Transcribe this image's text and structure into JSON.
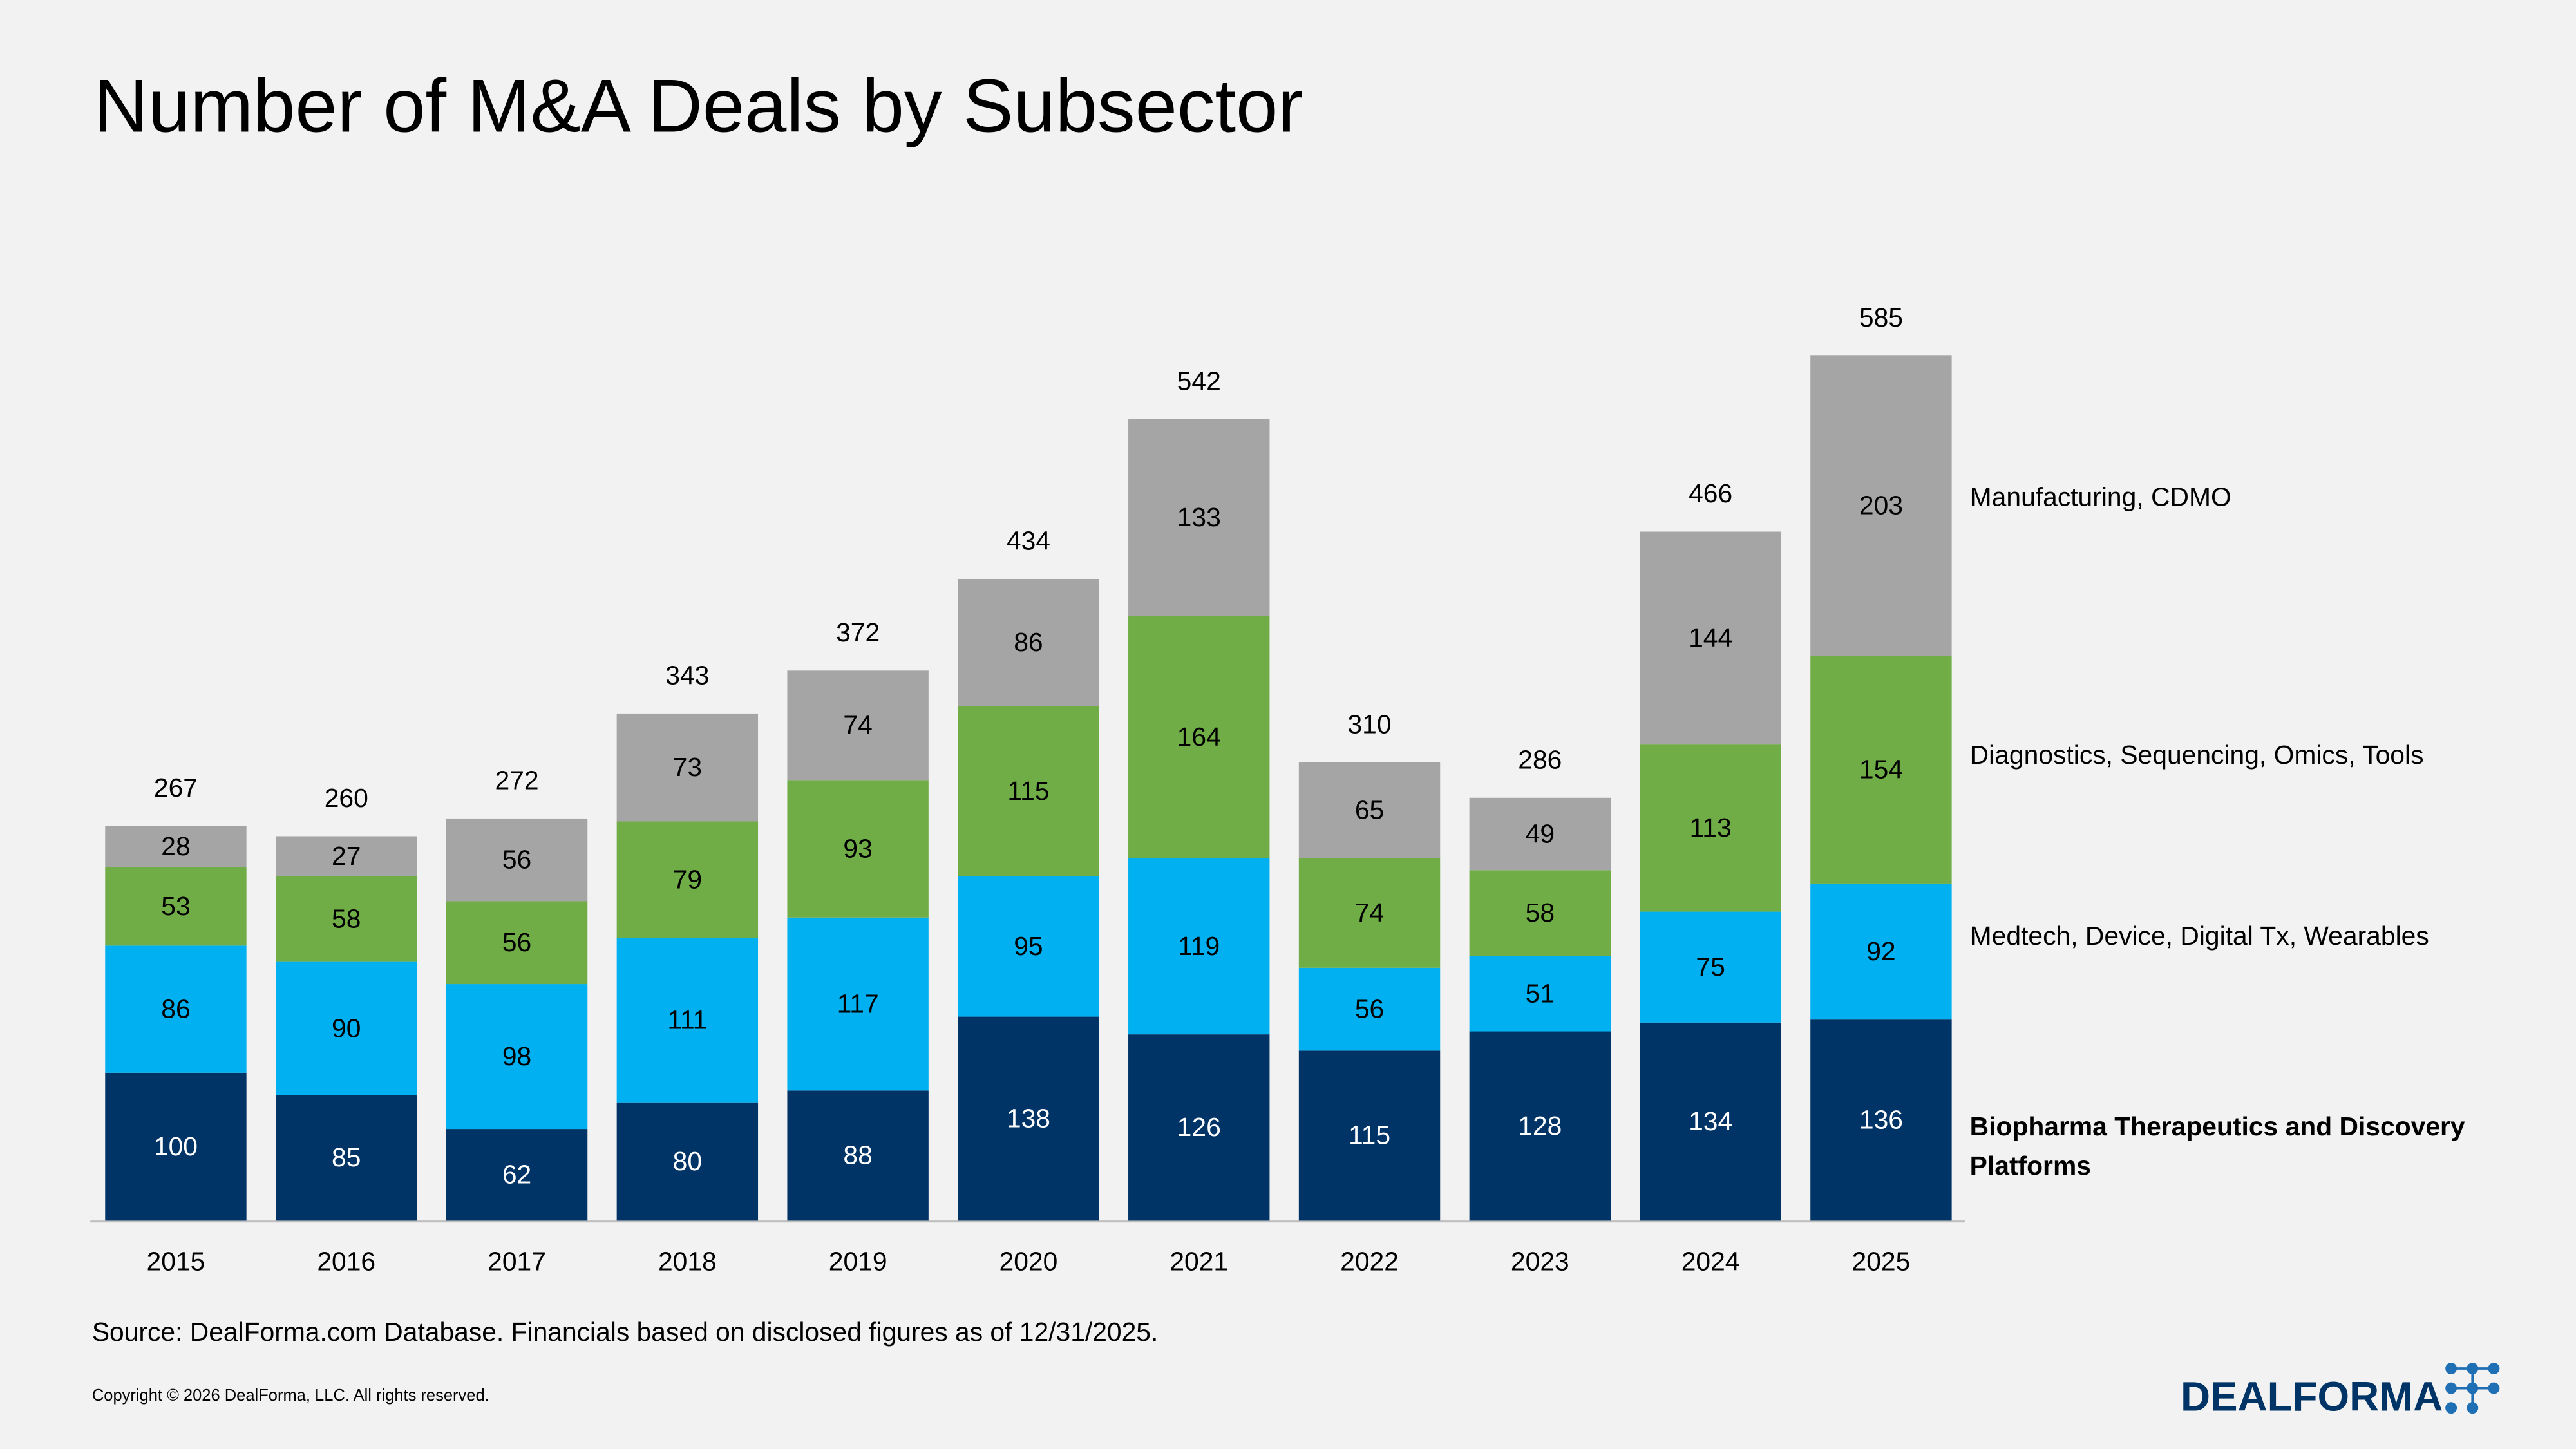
{
  "chart_data": {
    "type": "bar",
    "stacked": true,
    "title": "Number of M&A Deals by Subsector",
    "categories": [
      "2015",
      "2016",
      "2017",
      "2018",
      "2019",
      "2020",
      "2021",
      "2022",
      "2023",
      "2024",
      "2025"
    ],
    "series": [
      {
        "name": "Biopharma Therapeutics and Discovery Platforms",
        "color": "#003366",
        "values": [
          100,
          85,
          62,
          80,
          88,
          138,
          126,
          115,
          128,
          134,
          136
        ]
      },
      {
        "name": "Medtech, Device, Digital Tx, Wearables",
        "color": "#00b0f0",
        "values": [
          86,
          90,
          98,
          111,
          117,
          95,
          119,
          56,
          51,
          75,
          92
        ]
      },
      {
        "name": "Diagnostics, Sequencing, Omics, Tools",
        "color": "#70ad47",
        "values": [
          53,
          58,
          56,
          79,
          93,
          115,
          164,
          74,
          58,
          113,
          154
        ]
      },
      {
        "name": "Manufacturing, CDMO",
        "color": "#a5a5a5",
        "values": [
          28,
          27,
          56,
          73,
          74,
          86,
          133,
          65,
          49,
          144,
          203
        ]
      }
    ],
    "totals": [
      267,
      260,
      272,
      343,
      372,
      434,
      542,
      310,
      286,
      466,
      585
    ]
  },
  "footer": {
    "source": "Source: DealForma.com Database. Financials based on disclosed figures as of 12/31/2025.",
    "copyright": "Copyright © 2026 DealForma, LLC. All rights reserved.",
    "logo": "DEALFORMA"
  }
}
